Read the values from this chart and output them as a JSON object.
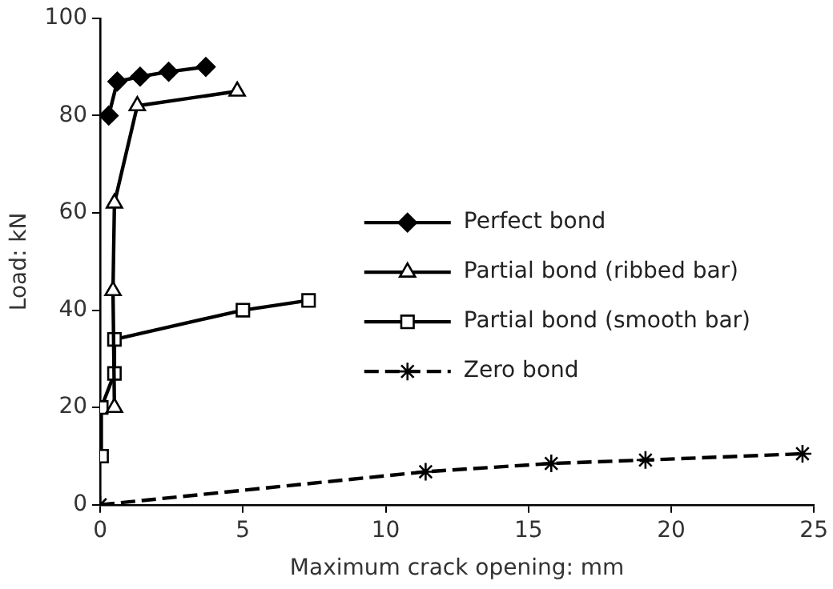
{
  "chart_data": {
    "type": "line",
    "xlabel": "Maximum crack opening: mm",
    "ylabel": "Load: kN",
    "xlim": [
      0,
      25
    ],
    "xticks": [
      0,
      5,
      10,
      15,
      20,
      25
    ],
    "ylim": [
      0,
      100
    ],
    "yticks": [
      0,
      20,
      40,
      60,
      80,
      100
    ],
    "grid": false,
    "legend": "right",
    "series": [
      {
        "name": "Perfect bond",
        "color": "#000000",
        "marker": "diamond",
        "x": [
          0.3,
          0.6,
          1.4,
          2.4,
          3.7
        ],
        "values": [
          80,
          87,
          88,
          89,
          90
        ]
      },
      {
        "name": "Partial bond (ribbed bar)",
        "color": "#000000",
        "marker": "triangle",
        "x": [
          0.5,
          0.45,
          0.5,
          1.3,
          4.8
        ],
        "values": [
          20,
          44,
          62,
          82,
          85
        ]
      },
      {
        "name": "Partial bond (smooth bar)",
        "color": "#000000",
        "marker": "square",
        "x": [
          0.05,
          0.04,
          0.5,
          0.5,
          5,
          7.3
        ],
        "values": [
          10,
          20,
          27,
          34,
          40,
          42
        ]
      },
      {
        "name": "Zero bond",
        "color": "#000000",
        "marker": "cross",
        "line_style": "dashed",
        "x": [
          0,
          11.4,
          15.8,
          19.1,
          24.6
        ],
        "values": [
          0,
          6.8,
          8.5,
          9.2,
          10.5
        ]
      }
    ]
  }
}
